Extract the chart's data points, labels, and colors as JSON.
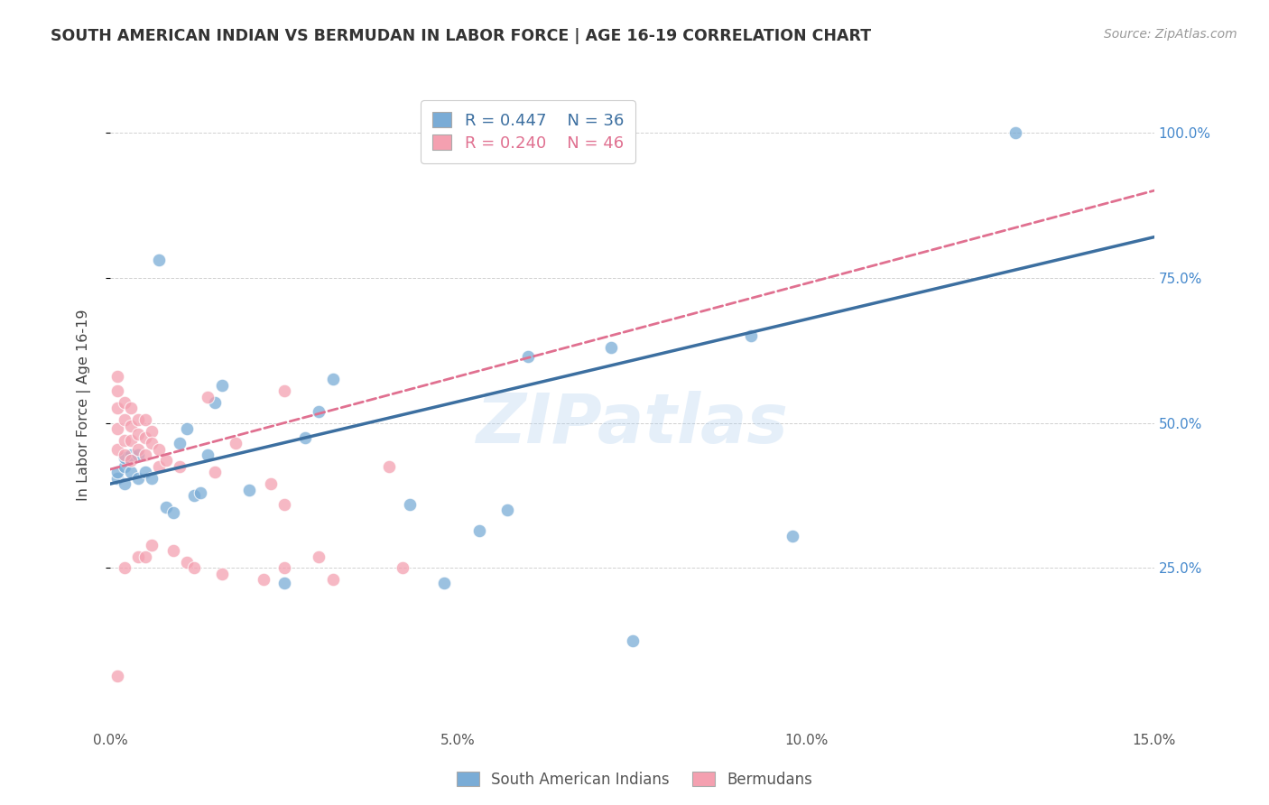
{
  "title": "SOUTH AMERICAN INDIAN VS BERMUDAN IN LABOR FORCE | AGE 16-19 CORRELATION CHART",
  "source": "Source: ZipAtlas.com",
  "ylabel": "In Labor Force | Age 16-19",
  "xlim": [
    0.0,
    0.15
  ],
  "ylim": [
    -0.02,
    1.08
  ],
  "xticks": [
    0.0,
    0.05,
    0.1,
    0.15
  ],
  "xticklabels": [
    "0.0%",
    "5.0%",
    "10.0%",
    "15.0%"
  ],
  "yticks": [
    0.25,
    0.5,
    0.75,
    1.0
  ],
  "yticklabels": [
    "25.0%",
    "50.0%",
    "75.0%",
    "100.0%"
  ],
  "blue_R": 0.447,
  "blue_N": 36,
  "pink_R": 0.24,
  "pink_N": 46,
  "blue_color": "#7aacd6",
  "pink_color": "#f4a0b0",
  "blue_line_color": "#3c6fa0",
  "pink_line_color": "#e07090",
  "watermark": "ZIPatlas",
  "blue_line_x0": 0.0,
  "blue_line_y0": 0.395,
  "blue_line_x1": 0.15,
  "blue_line_y1": 0.82,
  "pink_line_x0": 0.0,
  "pink_line_y0": 0.42,
  "pink_line_x1": 0.15,
  "pink_line_y1": 0.9,
  "blue_points_x": [
    0.001,
    0.001,
    0.002,
    0.002,
    0.002,
    0.003,
    0.003,
    0.004,
    0.004,
    0.005,
    0.006,
    0.008,
    0.009,
    0.01,
    0.011,
    0.012,
    0.013,
    0.014,
    0.015,
    0.016,
    0.02,
    0.025,
    0.028,
    0.03,
    0.032,
    0.043,
    0.048,
    0.053,
    0.057,
    0.06,
    0.072,
    0.075,
    0.092,
    0.098,
    0.13,
    0.007
  ],
  "blue_points_y": [
    0.405,
    0.415,
    0.425,
    0.395,
    0.44,
    0.415,
    0.445,
    0.405,
    0.445,
    0.415,
    0.405,
    0.355,
    0.345,
    0.465,
    0.49,
    0.375,
    0.38,
    0.445,
    0.535,
    0.565,
    0.385,
    0.225,
    0.475,
    0.52,
    0.575,
    0.36,
    0.225,
    0.315,
    0.35,
    0.615,
    0.63,
    0.125,
    0.65,
    0.305,
    1.0,
    0.78
  ],
  "pink_points_x": [
    0.001,
    0.001,
    0.001,
    0.001,
    0.001,
    0.002,
    0.002,
    0.002,
    0.002,
    0.002,
    0.003,
    0.003,
    0.003,
    0.003,
    0.004,
    0.004,
    0.004,
    0.004,
    0.005,
    0.005,
    0.005,
    0.005,
    0.006,
    0.006,
    0.006,
    0.007,
    0.007,
    0.008,
    0.009,
    0.01,
    0.011,
    0.012,
    0.014,
    0.015,
    0.016,
    0.018,
    0.022,
    0.023,
    0.025,
    0.025,
    0.025,
    0.03,
    0.032,
    0.04,
    0.042,
    0.001
  ],
  "pink_points_y": [
    0.58,
    0.555,
    0.525,
    0.49,
    0.455,
    0.535,
    0.505,
    0.47,
    0.445,
    0.25,
    0.525,
    0.495,
    0.47,
    0.435,
    0.505,
    0.48,
    0.455,
    0.27,
    0.505,
    0.475,
    0.445,
    0.27,
    0.485,
    0.465,
    0.29,
    0.455,
    0.425,
    0.435,
    0.28,
    0.425,
    0.26,
    0.25,
    0.545,
    0.415,
    0.24,
    0.465,
    0.23,
    0.395,
    0.25,
    0.36,
    0.555,
    0.27,
    0.23,
    0.425,
    0.25,
    0.065
  ]
}
